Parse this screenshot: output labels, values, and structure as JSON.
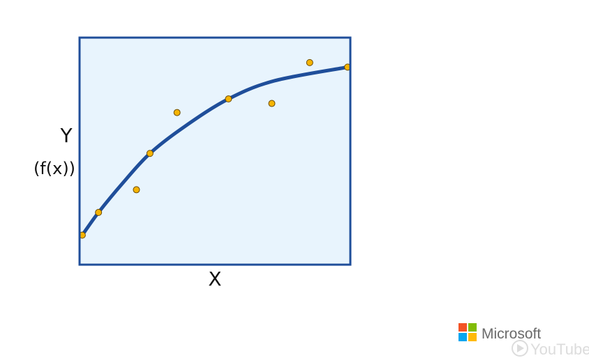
{
  "chart_data": {
    "type": "scatter",
    "xlabel": "X",
    "ylabel": "Y",
    "ylabel_sub": "(f(x))",
    "xlim": [
      0,
      10
    ],
    "ylim": [
      0,
      10
    ],
    "grid": false,
    "points": [
      {
        "x": 0.1,
        "y": 1.3
      },
      {
        "x": 0.7,
        "y": 2.3
      },
      {
        "x": 2.1,
        "y": 3.3
      },
      {
        "x": 2.6,
        "y": 4.9
      },
      {
        "x": 3.6,
        "y": 6.7
      },
      {
        "x": 5.5,
        "y": 7.3
      },
      {
        "x": 7.1,
        "y": 7.1
      },
      {
        "x": 8.5,
        "y": 8.9
      },
      {
        "x": 9.9,
        "y": 8.7
      }
    ],
    "fit_curve": [
      {
        "x": 0.1,
        "y": 1.3
      },
      {
        "x": 0.7,
        "y": 2.3
      },
      {
        "x": 1.6,
        "y": 3.6
      },
      {
        "x": 2.6,
        "y": 4.9
      },
      {
        "x": 3.9,
        "y": 6.1
      },
      {
        "x": 5.5,
        "y": 7.3
      },
      {
        "x": 7.2,
        "y": 8.1
      },
      {
        "x": 9.9,
        "y": 8.7
      }
    ],
    "colors": {
      "plot_background": "#e8f4fd",
      "frame": "#1f4e9a",
      "curve": "#1f4e9a",
      "points_fill": "#f5b400",
      "points_stroke": "#6b4a00"
    }
  },
  "watermark": {
    "brand": "Microsoft",
    "player": "YouTube",
    "logo_icon": "microsoft-four-squares-icon",
    "logo_colors": [
      "#f35325",
      "#81bc06",
      "#05a6f0",
      "#ffba08"
    ]
  }
}
